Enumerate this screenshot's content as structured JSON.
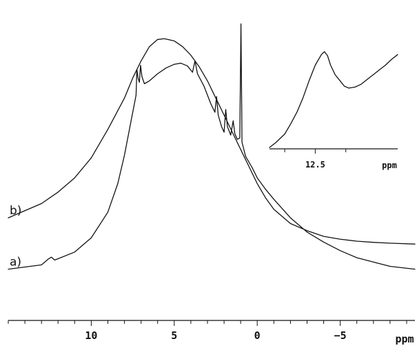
{
  "chart_data": [
    {
      "type": "line",
      "title": "",
      "xlabel": "ppm",
      "ylabel": "",
      "x_reversed": true,
      "xlim": [
        15,
        -9.5
      ],
      "ylim": [
        0,
        1
      ],
      "x_ticks_major": [
        10,
        5,
        0,
        -5
      ],
      "x_tick_labels": [
        "10",
        "5",
        "0",
        "−5"
      ],
      "x_ticks_minor_step": 1,
      "grid": false,
      "y_axis_shown": false,
      "series": [
        {
          "name": "a)",
          "points": [
            [
              15.0,
              0.1
            ],
            [
              13.0,
              0.115
            ],
            [
              12.6,
              0.135
            ],
            [
              12.4,
              0.142
            ],
            [
              12.2,
              0.132
            ],
            [
              11.0,
              0.16
            ],
            [
              10.0,
              0.21
            ],
            [
              9.0,
              0.3
            ],
            [
              8.4,
              0.4
            ],
            [
              8.0,
              0.5
            ],
            [
              7.6,
              0.62
            ],
            [
              7.3,
              0.71
            ],
            [
              7.25,
              0.8
            ],
            [
              7.18,
              0.77
            ],
            [
              7.1,
              0.755
            ],
            [
              7.03,
              0.815
            ],
            [
              6.95,
              0.775
            ],
            [
              6.8,
              0.75
            ],
            [
              6.5,
              0.76
            ],
            [
              6.0,
              0.785
            ],
            [
              5.5,
              0.805
            ],
            [
              5.0,
              0.818
            ],
            [
              4.6,
              0.822
            ],
            [
              4.2,
              0.812
            ],
            [
              3.9,
              0.79
            ],
            [
              3.75,
              0.83
            ],
            [
              3.6,
              0.785
            ],
            [
              3.2,
              0.74
            ],
            [
              2.8,
              0.68
            ],
            [
              2.55,
              0.65
            ],
            [
              2.45,
              0.705
            ],
            [
              2.35,
              0.64
            ],
            [
              2.15,
              0.6
            ],
            [
              2.0,
              0.58
            ],
            [
              1.9,
              0.66
            ],
            [
              1.8,
              0.6
            ],
            [
              1.6,
              0.57
            ],
            [
              1.45,
              0.62
            ],
            [
              1.35,
              0.575
            ],
            [
              1.2,
              0.555
            ],
            [
              1.05,
              0.56
            ],
            [
              0.98,
              0.96
            ],
            [
              0.92,
              0.545
            ],
            [
              0.7,
              0.495
            ],
            [
              0.3,
              0.455
            ],
            [
              0.0,
              0.42
            ],
            [
              -0.5,
              0.38
            ],
            [
              -1.0,
              0.345
            ],
            [
              -2.0,
              0.28
            ],
            [
              -3.0,
              0.23
            ],
            [
              -4.0,
              0.195
            ],
            [
              -5.0,
              0.165
            ],
            [
              -6.0,
              0.14
            ],
            [
              -7.0,
              0.125
            ],
            [
              -8.0,
              0.11
            ],
            [
              -9.5,
              0.1
            ]
          ]
        },
        {
          "name": "b)",
          "points": [
            [
              15.0,
              0.28
            ],
            [
              13.0,
              0.33
            ],
            [
              12.0,
              0.37
            ],
            [
              11.0,
              0.42
            ],
            [
              10.0,
              0.49
            ],
            [
              9.0,
              0.59
            ],
            [
              8.0,
              0.7
            ],
            [
              7.5,
              0.77
            ],
            [
              7.0,
              0.83
            ],
            [
              6.5,
              0.88
            ],
            [
              6.0,
              0.905
            ],
            [
              5.6,
              0.908
            ],
            [
              5.0,
              0.9
            ],
            [
              4.5,
              0.88
            ],
            [
              4.0,
              0.85
            ],
            [
              3.5,
              0.81
            ],
            [
              3.0,
              0.76
            ],
            [
              2.5,
              0.7
            ],
            [
              2.0,
              0.64
            ],
            [
              1.5,
              0.58
            ],
            [
              1.0,
              0.52
            ],
            [
              0.5,
              0.46
            ],
            [
              0.0,
              0.4
            ],
            [
              -0.5,
              0.35
            ],
            [
              -1.0,
              0.31
            ],
            [
              -2.0,
              0.26
            ],
            [
              -3.0,
              0.235
            ],
            [
              -4.0,
              0.215
            ],
            [
              -5.0,
              0.205
            ],
            [
              -6.0,
              0.198
            ],
            [
              -7.0,
              0.194
            ],
            [
              -8.0,
              0.191
            ],
            [
              -9.5,
              0.188
            ]
          ]
        }
      ]
    },
    {
      "type": "line",
      "title": "",
      "xlabel": "ppm",
      "ylabel": "",
      "x_reversed": true,
      "xlim": [
        14.0,
        9.8
      ],
      "x_ticks_major": [
        12.5
      ],
      "x_tick_labels": [
        "12.5"
      ],
      "x_ticks_minor": [
        13.5,
        11.5
      ],
      "grid": false,
      "y_axis_shown": false,
      "series": [
        {
          "name": "",
          "points": [
            [
              14.0,
              0.0
            ],
            [
              13.8,
              0.05
            ],
            [
              13.5,
              0.14
            ],
            [
              13.3,
              0.25
            ],
            [
              13.1,
              0.37
            ],
            [
              12.9,
              0.52
            ],
            [
              12.7,
              0.7
            ],
            [
              12.5,
              0.86
            ],
            [
              12.3,
              0.97
            ],
            [
              12.2,
              1.0
            ],
            [
              12.1,
              0.96
            ],
            [
              12.0,
              0.86
            ],
            [
              11.85,
              0.76
            ],
            [
              11.7,
              0.7
            ],
            [
              11.55,
              0.64
            ],
            [
              11.4,
              0.62
            ],
            [
              11.2,
              0.63
            ],
            [
              11.0,
              0.66
            ],
            [
              10.8,
              0.71
            ],
            [
              10.6,
              0.76
            ],
            [
              10.4,
              0.81
            ],
            [
              10.2,
              0.86
            ],
            [
              10.0,
              0.92
            ],
            [
              9.8,
              0.97
            ]
          ]
        }
      ]
    }
  ]
}
